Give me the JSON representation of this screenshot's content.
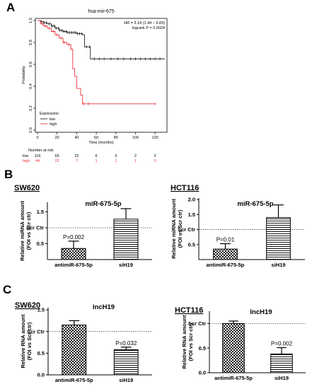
{
  "colors": {
    "low": "#222222",
    "high": "#e8333a",
    "axis": "#000000"
  },
  "chart_data": [
    {
      "panel": "A",
      "type": "line",
      "title": "hsa-mir-675",
      "xlabel": "Time (months)",
      "ylabel": "Probability",
      "xlim": [
        0,
        130
      ],
      "ylim": [
        0,
        1
      ],
      "xticks": [
        0,
        20,
        40,
        60,
        80,
        100,
        120
      ],
      "yticks": [
        0,
        0.2,
        0.4,
        0.6,
        0.8,
        1.0
      ],
      "ytick_labels": [
        "0.0",
        "0.2",
        "0.4",
        "0.6",
        "0.8",
        "1.0"
      ],
      "stats_lines": [
        "HR = 3.14 (1.44 − 6.83)",
        "logrank P = 0.0024"
      ],
      "legend": {
        "title": "Expression",
        "position": "bottom-left"
      },
      "series": [
        {
          "name": "low",
          "color_key": "low",
          "points": [
            [
              0,
              1.0
            ],
            [
              3,
              0.99
            ],
            [
              6,
              0.98
            ],
            [
              10,
              0.97
            ],
            [
              14,
              0.95
            ],
            [
              18,
              0.93
            ],
            [
              22,
              0.91
            ],
            [
              26,
              0.9
            ],
            [
              30,
              0.89
            ],
            [
              40,
              0.88
            ],
            [
              46,
              0.87
            ],
            [
              48,
              0.76
            ],
            [
              52,
              0.76
            ],
            [
              54,
              0.65
            ],
            [
              130,
              0.65
            ]
          ],
          "censor_x": [
            4,
            7,
            9,
            12,
            15,
            17,
            19,
            21,
            23,
            25,
            27,
            29,
            31,
            33,
            35,
            37,
            39,
            41,
            43,
            45,
            50,
            53,
            58,
            63,
            68,
            75,
            82,
            88,
            95,
            100,
            105,
            110,
            115,
            120,
            125
          ]
        },
        {
          "name": "high",
          "color_key": "high",
          "points": [
            [
              0,
              1.0
            ],
            [
              3,
              0.97
            ],
            [
              6,
              0.95
            ],
            [
              10,
              0.93
            ],
            [
              14,
              0.9
            ],
            [
              18,
              0.87
            ],
            [
              22,
              0.84
            ],
            [
              26,
              0.8
            ],
            [
              30,
              0.78
            ],
            [
              34,
              0.74
            ],
            [
              36,
              0.56
            ],
            [
              38,
              0.49
            ],
            [
              40,
              0.38
            ],
            [
              44,
              0.32
            ],
            [
              46,
              0.24
            ],
            [
              120,
              0.24
            ]
          ],
          "censor_x": [
            5,
            8,
            12,
            16,
            20,
            24,
            27,
            32,
            34,
            47,
            52,
            120
          ]
        }
      ],
      "risk_table": {
        "header": "Number at risk",
        "times": [
          0,
          20,
          40,
          60,
          80,
          100,
          120
        ],
        "rows": [
          {
            "name": "low",
            "values": [
              "116",
              "65",
              "22",
              "6",
              "3",
              "2",
              "2"
            ]
          },
          {
            "name": "high",
            "values": [
              "44",
              "22",
              "7",
              "1",
              "1",
              "1",
              "0"
            ]
          }
        ]
      }
    },
    {
      "panel": "B",
      "cell_line": "SW620",
      "type": "bar",
      "title": "miR-675-5p",
      "ylabel_lines": [
        "Relative miRNA amount",
        "(FOI vs Scr ctr)"
      ],
      "yticks": [
        0.5,
        1.0,
        1.5
      ],
      "ytick_labels": [
        "0.5",
        "Scr Ctr",
        "1.5"
      ],
      "ylim": [
        0,
        1.8
      ],
      "reference_line": 1.0,
      "categories": [
        "antimiR-675-5p",
        "siH19"
      ],
      "values": [
        0.35,
        1.27
      ],
      "errors": [
        0.23,
        0.33
      ],
      "annotations": [
        {
          "category_index": 0,
          "text": "P=0.002"
        }
      ]
    },
    {
      "panel": "B",
      "cell_line": "HCT116",
      "type": "bar",
      "title": "miR-675-5p",
      "ylabel_lines": [
        "Relative miRNA amount",
        "(FOI vs Scr ctr)"
      ],
      "yticks": [
        0.5,
        1.0,
        1.5,
        2.0
      ],
      "ytick_labels": [
        "0.5",
        "Scr Ctr",
        "1.5",
        "2.0"
      ],
      "ylim": [
        0,
        2.05
      ],
      "reference_line": 1.0,
      "categories": [
        "antimiR-675-5p",
        "siH19"
      ],
      "values": [
        0.35,
        1.4
      ],
      "errors": [
        0.18,
        0.42
      ],
      "annotations": [
        {
          "category_index": 0,
          "text": "P=0.01"
        }
      ]
    },
    {
      "panel": "C",
      "cell_line": "SW620",
      "type": "bar",
      "title": "lncH19",
      "ylabel_lines": [
        "Relative RNA amount",
        "(FOI vs Scr ctr)"
      ],
      "yticks": [
        0.0,
        0.5,
        1.0,
        1.5
      ],
      "ytick_labels": [
        "0.0",
        "0.5",
        "Scr Ctr",
        "1.5"
      ],
      "ylim": [
        0,
        1.55
      ],
      "reference_line": 1.0,
      "categories": [
        "antimiR-675-5p",
        "siH19"
      ],
      "values": [
        1.15,
        0.58
      ],
      "errors": [
        0.1,
        0.06
      ],
      "annotations": [
        {
          "category_index": 1,
          "text": "P=0.032"
        }
      ]
    },
    {
      "panel": "C",
      "cell_line": "HCT116",
      "type": "bar",
      "title": "lncH19",
      "ylabel_lines": [
        "Relative RNA amount",
        "(FOI vs Scr ctr)"
      ],
      "yticks": [
        0.0,
        0.5,
        1.0
      ],
      "ytick_labels": [
        "0.0",
        "0.5",
        "Scr Ctr"
      ],
      "ylim": [
        0,
        1.25
      ],
      "reference_line": 1.0,
      "categories": [
        "antimiR-675-5p",
        "siH19"
      ],
      "values": [
        1.0,
        0.38
      ],
      "errors": [
        0.05,
        0.13
      ],
      "annotations": [
        {
          "category_index": 1,
          "text": "P=0.002"
        }
      ]
    }
  ]
}
